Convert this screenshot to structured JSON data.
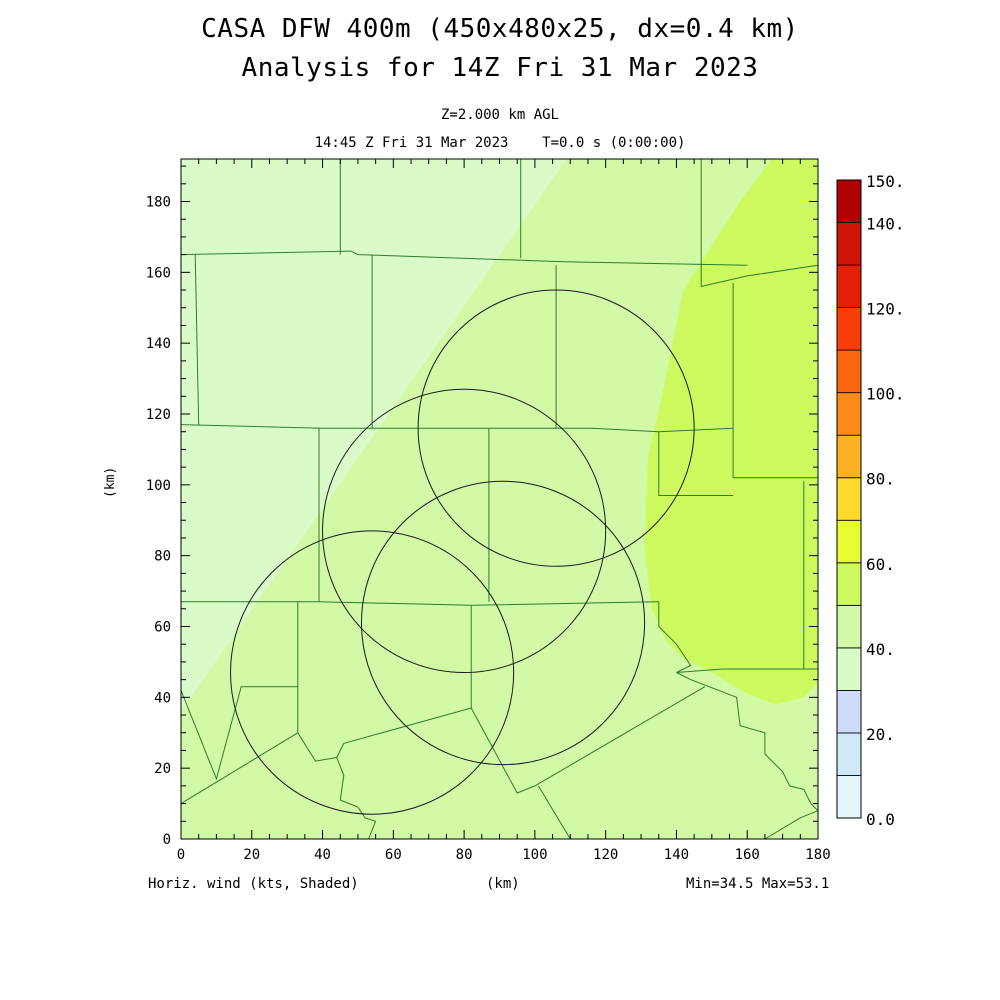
{
  "title": "CASA DFW 400m (450x480x25, dx=0.4 km)",
  "subtitle": "Analysis for 14Z Fri 31 Mar 2023",
  "level_label": "Z=2.000 km AGL",
  "time_label": "14:45 Z Fri 31 Mar 2023    T=0.0 s (0:00:00)",
  "field_label": "Horiz. wind (kts, Shaded)",
  "x_units": "(km)",
  "y_units": "(km)",
  "minmax_label": "Min=34.5 Max=53.1",
  "chart_data": {
    "type": "heatmap",
    "variable": "Horizontal wind speed (kts)",
    "xlim": [
      0,
      180
    ],
    "ylim": [
      0,
      192
    ],
    "x_ticks": [
      0,
      20,
      40,
      60,
      80,
      100,
      120,
      140,
      160,
      180
    ],
    "y_ticks": [
      0,
      20,
      40,
      60,
      80,
      100,
      120,
      140,
      160,
      180
    ],
    "min": 34.5,
    "max": 53.1,
    "grid": false,
    "colorbar": {
      "placement": "right",
      "levels": [
        0,
        10,
        20,
        30,
        40,
        50,
        60,
        70,
        80,
        90,
        100,
        110,
        120,
        130,
        140,
        150
      ],
      "colors": [
        "#e2f6fc",
        "#cfe9f8",
        "#cfdcf8",
        "#d9fbc7",
        "#d1f9a6",
        "#cdfb5f",
        "#e8fb33",
        "#fcd92d",
        "#fcb125",
        "#fb8b1a",
        "#fa6610",
        "#fa3c0a",
        "#e51f05",
        "#cd1405",
        "#b00002"
      ],
      "tick_labels": [
        "0.0",
        "20.",
        "40.",
        "60.",
        "80.",
        "100.",
        "120.",
        "140.",
        "150."
      ],
      "tick_values": [
        0,
        20,
        40,
        60,
        80,
        100,
        120,
        140,
        150
      ]
    },
    "field_shading": {
      "bands": [
        {
          "label": "30-40",
          "color": "#d9fbc7",
          "region": "northwest"
        },
        {
          "label": "40-50",
          "color": "#d1f9a6",
          "region": "central and southeast"
        },
        {
          "label": "50-60",
          "color": "#cdfb5f",
          "region": "east"
        }
      ]
    },
    "radar_rings": [
      {
        "center": [
          106,
          116
        ],
        "radius": 39
      },
      {
        "center": [
          80,
          87
        ],
        "radius": 40
      },
      {
        "center": [
          91,
          61
        ],
        "radius": 40
      },
      {
        "center": [
          54,
          47
        ],
        "radius": 40
      }
    ],
    "boundaries": [
      [
        [
          0,
          165
        ],
        [
          48,
          166
        ],
        [
          50,
          165
        ],
        [
          108,
          163
        ],
        [
          160,
          162
        ]
      ],
      [
        [
          45,
          192
        ],
        [
          45,
          165
        ]
      ],
      [
        [
          96,
          192
        ],
        [
          96,
          164
        ]
      ],
      [
        [
          147,
          192
        ],
        [
          147,
          156
        ],
        [
          160,
          159
        ],
        [
          180,
          162
        ]
      ],
      [
        [
          0,
          117
        ],
        [
          40,
          116
        ],
        [
          76,
          116
        ],
        [
          116,
          116
        ],
        [
          135,
          115
        ],
        [
          156,
          116
        ]
      ],
      [
        [
          4,
          165
        ],
        [
          5,
          117
        ]
      ],
      [
        [
          54,
          165
        ],
        [
          54,
          116
        ]
      ],
      [
        [
          106,
          162
        ],
        [
          106,
          116
        ]
      ],
      [
        [
          156,
          157
        ],
        [
          156,
          116
        ],
        [
          156,
          102
        ],
        [
          180,
          102
        ]
      ],
      [
        [
          39,
          116
        ],
        [
          39,
          67
        ]
      ],
      [
        [
          87,
          116
        ],
        [
          87,
          67
        ]
      ],
      [
        [
          135,
          115
        ],
        [
          135,
          97
        ],
        [
          156,
          97
        ]
      ],
      [
        [
          0,
          67
        ],
        [
          39,
          67
        ],
        [
          82,
          66
        ],
        [
          135,
          67
        ]
      ],
      [
        [
          135,
          67
        ],
        [
          135,
          60
        ],
        [
          140,
          55
        ],
        [
          144,
          49
        ],
        [
          140,
          47
        ],
        [
          153,
          48
        ],
        [
          176,
          48
        ]
      ],
      [
        [
          176,
          101
        ],
        [
          176,
          48
        ],
        [
          180,
          48
        ]
      ],
      [
        [
          33,
          67
        ],
        [
          33,
          30
        ],
        [
          0,
          10
        ]
      ],
      [
        [
          82,
          66
        ],
        [
          82,
          37
        ],
        [
          46,
          27
        ],
        [
          44,
          23
        ],
        [
          38,
          22
        ],
        [
          33,
          30
        ]
      ],
      [
        [
          33,
          43
        ],
        [
          17,
          43
        ],
        [
          10,
          17
        ],
        [
          0,
          42
        ]
      ],
      [
        [
          82,
          37
        ],
        [
          95,
          13
        ],
        [
          100,
          15
        ],
        [
          148,
          43
        ]
      ],
      [
        [
          140,
          47
        ],
        [
          144,
          45
        ],
        [
          157,
          40
        ],
        [
          158,
          32
        ],
        [
          165,
          30
        ],
        [
          165,
          24
        ],
        [
          170,
          19
        ],
        [
          172,
          15
        ],
        [
          176,
          14
        ],
        [
          178,
          10
        ],
        [
          180,
          8
        ]
      ],
      [
        [
          44,
          23
        ],
        [
          46,
          18
        ],
        [
          45,
          11
        ],
        [
          50,
          9
        ],
        [
          52,
          6
        ],
        [
          55,
          5
        ],
        [
          53,
          0
        ]
      ],
      [
        [
          101,
          15
        ],
        [
          110,
          0
        ]
      ],
      [
        [
          165,
          0
        ],
        [
          175,
          6
        ],
        [
          180,
          8
        ]
      ]
    ]
  }
}
